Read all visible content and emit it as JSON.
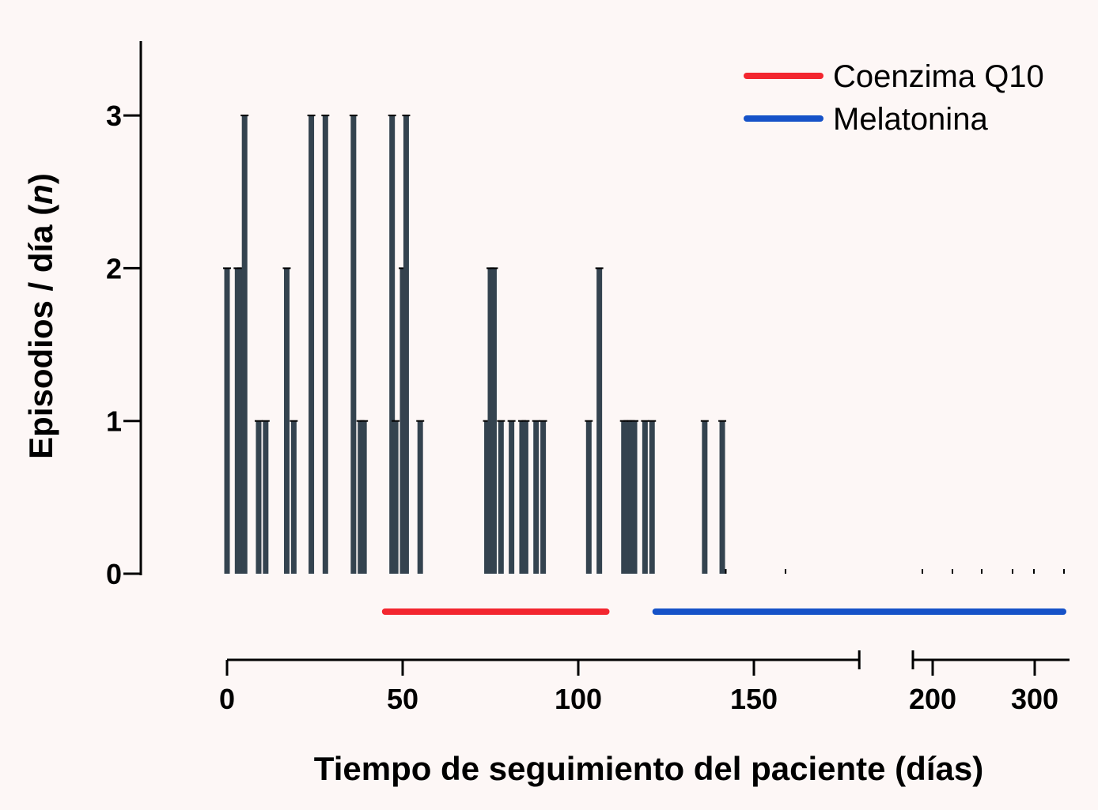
{
  "chart_data": {
    "type": "bar",
    "xlabel": "Tiempo de seguimiento del paciente (días)",
    "ylabel_prefix": "Episodios / día (",
    "ylabel_var": "n",
    "ylabel_suffix": ")",
    "ylim": [
      0,
      3.5
    ],
    "yticks": [
      0,
      1,
      2,
      3
    ],
    "xlim": [
      0,
      180
    ],
    "xticks_main": [
      0,
      50,
      100,
      150
    ],
    "xticks_break": [
      "200",
      "300"
    ],
    "colors": {
      "bars": "#34434f",
      "coenzima": "#f3262f",
      "melatonina": "#1652c8",
      "axis": "#000000"
    },
    "legend": {
      "placement": "top-right",
      "entries": [
        {
          "label": "Coenzima Q10",
          "color": "#f3262f"
        },
        {
          "label": "Melatonina",
          "color": "#1652c8"
        }
      ]
    },
    "series": [
      {
        "name": "Episodios",
        "x": [
          0,
          3,
          4,
          5,
          9,
          11,
          17,
          19,
          24,
          28,
          36,
          38,
          39,
          47,
          48,
          50,
          51,
          55,
          74,
          75,
          76,
          78,
          81,
          84,
          85,
          88,
          90,
          103,
          106,
          113,
          114,
          115,
          116,
          119,
          121,
          136,
          141
        ],
        "values": [
          2,
          2,
          2,
          3,
          1,
          1,
          2,
          1,
          3,
          3,
          3,
          1,
          1,
          3,
          1,
          2,
          3,
          1,
          1,
          2,
          2,
          1,
          1,
          1,
          1,
          1,
          1,
          1,
          2,
          1,
          1,
          1,
          1,
          1,
          1,
          1,
          1
        ]
      }
    ],
    "zero_day_marks": [
      142,
      159
    ],
    "treatments": [
      {
        "name": "Coenzima Q10",
        "start": 45,
        "end": 108
      },
      {
        "name": "Melatonina",
        "start": 122,
        "end": 300
      }
    ]
  }
}
